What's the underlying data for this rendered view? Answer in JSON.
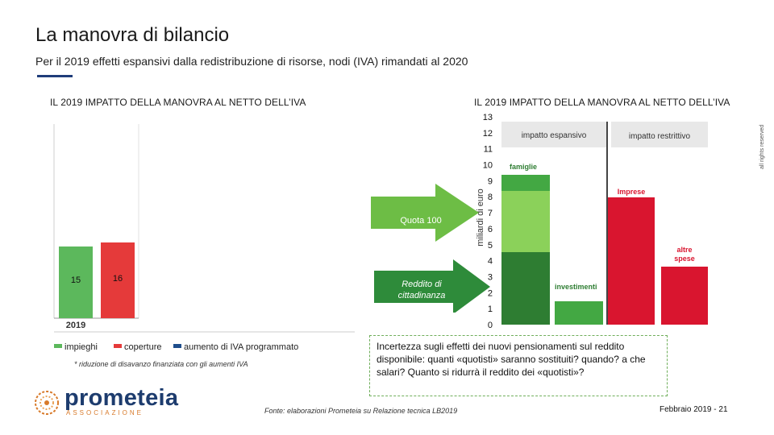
{
  "header": {
    "title": "La manovra di bilancio",
    "subtitle": "Per il 2019 effetti espansivi dalla redistribuzione di risorse, nodi (IVA) rimandati al 2020"
  },
  "left_chart": {
    "section_title": "IL 2019 IMPATTO DELLA MANOVRA AL NETTO DELL’IVA",
    "footnote": "* riduzione di disavanzo finanziata con gli aumenti IVA",
    "colors": {
      "impieghi": "#5cb85c",
      "coperture": "#e53a3a",
      "aumento": "#1f4e8c"
    }
  },
  "right_chart": {
    "section_title": "IL 2019 IMPATTO DELLA MANOVRA AL NETTO DELL’IVA",
    "colors": {
      "dark_green": "#2e7d32",
      "mid_green": "#43a843",
      "light_green": "#8bd15a",
      "red": "#d9152f",
      "grey_header": "#e8e8e8"
    }
  },
  "chart_data": [
    {
      "type": "bar",
      "categories": [
        "2019"
      ],
      "series": [
        {
          "name": "impieghi",
          "values": [
            15
          ]
        },
        {
          "name": "coperture",
          "values": [
            16
          ]
        },
        {
          "name": "aumento di IVA programmato",
          "values": [
            0
          ]
        }
      ],
      "legend": "bottom",
      "xlabel": "",
      "ylabel": ""
    },
    {
      "type": "bar",
      "ylabel": "miliardi di euro",
      "ylim": [
        0,
        13
      ],
      "yticks": [
        0,
        1,
        2,
        3,
        4,
        5,
        6,
        7,
        8,
        9,
        10,
        11,
        12,
        13
      ],
      "panels": [
        "impatto espansivo",
        "impatto restrittivo"
      ],
      "bars": [
        {
          "label": "famiglie",
          "segments": [
            4.5,
            3.8,
            1.0
          ],
          "top": 9.3
        },
        {
          "label": "investimenti",
          "values": [
            1.5
          ]
        },
        {
          "label": "Imprese",
          "values": [
            7.9
          ]
        },
        {
          "label": "altre spese",
          "values": [
            3.6
          ]
        }
      ],
      "grid": false
    }
  ],
  "arrows": {
    "quota_100": "Quota 100",
    "reddito": "Reddito di cittadinanza"
  },
  "box_text": "Incertezza sugli effetti dei nuovi pensionamenti sul reddito disponibile: quanti «quotisti» saranno sostituiti? quando? a che salari? Quanto si ridurrà il reddito dei «quotisti»?",
  "footer": {
    "source": "Fonte: elaborazioni Prometeia su Relazione tecnica LB2019",
    "page": "Febbraio 2019 - 21",
    "rights": "all rights reserved",
    "logo_name": "prometeia",
    "logo_sub": "ASSOCIAZIONE"
  }
}
